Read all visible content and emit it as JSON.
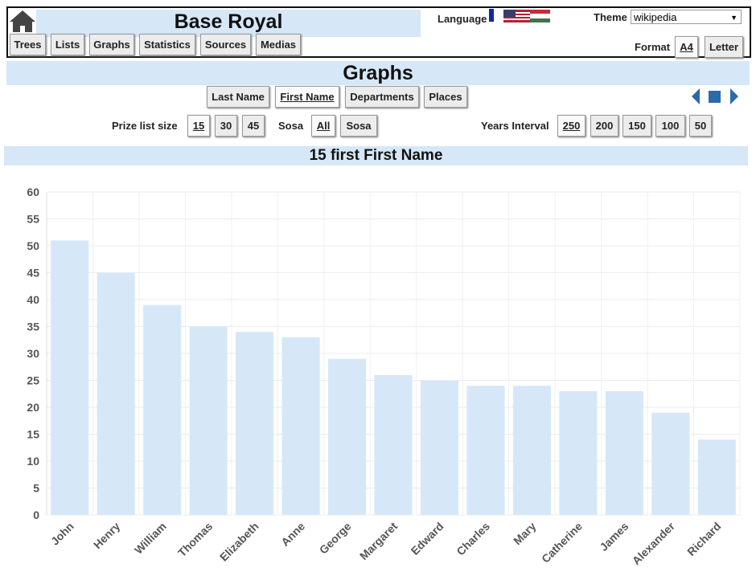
{
  "header": {
    "title": "Base Royal",
    "nav": [
      "Trees",
      "Lists",
      "Graphs",
      "Statistics",
      "Sources",
      "Medias"
    ],
    "language_label": "Language",
    "theme_label": "Theme",
    "theme_value": "wikipedia",
    "format_label": "Format",
    "formats": [
      "A4",
      "Letter"
    ]
  },
  "page_title": "Graphs",
  "graph_types": [
    "Last Name",
    "First Name",
    "Departments",
    "Places"
  ],
  "prize_label": "Prize list size",
  "prize_sizes": [
    15,
    30,
    45
  ],
  "sosa_label": "Sosa",
  "sosa_options": [
    "All",
    "Sosa"
  ],
  "years_label": "Years Interval",
  "years_options": [
    250,
    200,
    150,
    100,
    50
  ],
  "chart_data": {
    "type": "bar",
    "title": "15 first First Name",
    "categories": [
      "John",
      "Henry",
      "William",
      "Thomas",
      "Elizabeth",
      "Anne",
      "George",
      "Margaret",
      "Edward",
      "Charles",
      "Mary",
      "Catherine",
      "James",
      "Alexander",
      "Richard"
    ],
    "values": [
      51,
      45,
      39,
      35,
      34,
      33,
      29,
      26,
      25,
      24,
      24,
      23,
      23,
      19,
      14
    ],
    "color": "#d6e8f7",
    "ylim": [
      0,
      60
    ],
    "yticks": [
      0,
      5,
      10,
      15,
      20,
      25,
      30,
      35,
      40,
      45,
      50,
      55,
      60
    ],
    "grid": true
  }
}
